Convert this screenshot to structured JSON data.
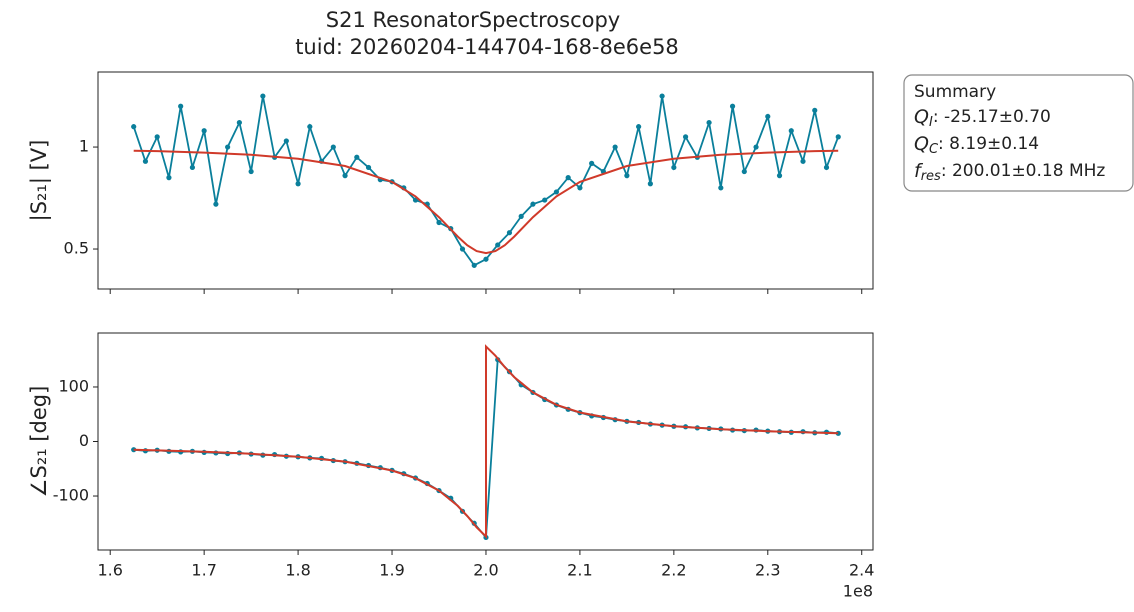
{
  "figure": {
    "title": "S21 ResonatorSpectroscopy",
    "subtitle": "tuid: 20260204-144704-168-8e6e58",
    "summary": {
      "title": "Summary",
      "lines": [
        {
          "symbol": "Q",
          "sub": "I",
          "text": ": -25.17±0.70"
        },
        {
          "symbol": "Q",
          "sub": "C",
          "text": ": 8.19±0.14"
        },
        {
          "symbol": "f",
          "sub": "res",
          "text": ": 200.01±0.18 MHz"
        }
      ]
    }
  },
  "chart_data": [
    {
      "type": "line",
      "ylabel": "|S₂₁| [V]",
      "xlim": [
        1.587,
        2.412
      ],
      "xticks": [
        1.6,
        1.7,
        1.8,
        1.9,
        {
          "value": 2,
          "label": "2.0"
        },
        2.1,
        2.2,
        2.3,
        2.4
      ],
      "show_xtick_labels": false,
      "ylim": [
        0.304,
        1.368
      ],
      "yticks": [
        0.5,
        1
      ],
      "series": [
        {
          "name": "data",
          "color": "#0a7f9b",
          "markers": true,
          "x": [
            1.625,
            1.6375,
            1.65,
            1.6625,
            1.675,
            1.6875,
            1.7,
            1.7125,
            1.725,
            1.7375,
            1.75,
            1.7625,
            1.775,
            1.7875,
            1.8,
            1.8125,
            1.825,
            1.8375,
            1.85,
            1.8625,
            1.875,
            1.8875,
            1.9,
            1.9125,
            1.925,
            1.9375,
            1.95,
            1.9625,
            1.975,
            1.9875,
            2.0,
            2.0125,
            2.025,
            2.0375,
            2.05,
            2.0625,
            2.075,
            2.0875,
            2.1,
            2.1125,
            2.125,
            2.1375,
            2.15,
            2.1625,
            2.175,
            2.1875,
            2.2,
            2.2125,
            2.225,
            2.2375,
            2.25,
            2.2625,
            2.275,
            2.2875,
            2.3,
            2.3125,
            2.325,
            2.3375,
            2.35,
            2.3625,
            2.375
          ],
          "values": [
            1.1,
            0.93,
            1.05,
            0.85,
            1.2,
            0.9,
            1.08,
            0.72,
            1.0,
            1.12,
            0.88,
            1.25,
            0.95,
            1.03,
            0.82,
            1.1,
            0.93,
            1.0,
            0.86,
            0.95,
            0.9,
            0.84,
            0.83,
            0.8,
            0.74,
            0.72,
            0.63,
            0.6,
            0.5,
            0.42,
            0.45,
            0.52,
            0.58,
            0.66,
            0.72,
            0.74,
            0.78,
            0.85,
            0.8,
            0.92,
            0.88,
            1.0,
            0.86,
            1.1,
            0.82,
            1.25,
            0.9,
            1.05,
            0.95,
            1.12,
            0.8,
            1.2,
            0.88,
            1.0,
            1.15,
            0.86,
            1.08,
            0.93,
            1.18,
            0.9,
            1.05
          ]
        },
        {
          "name": "fit",
          "color": "#d03a2a",
          "markers": false,
          "x": [
            1.625,
            1.65,
            1.7,
            1.75,
            1.8,
            1.85,
            1.9,
            1.925,
            1.95,
            1.97,
            1.98,
            1.99,
            2.0,
            2.01,
            2.02,
            2.03,
            2.05,
            2.075,
            2.1,
            2.15,
            2.2,
            2.25,
            2.3,
            2.35,
            2.375
          ],
          "values": [
            0.982,
            0.98,
            0.973,
            0.962,
            0.943,
            0.907,
            0.829,
            0.758,
            0.656,
            0.561,
            0.519,
            0.49,
            0.48,
            0.49,
            0.519,
            0.561,
            0.656,
            0.758,
            0.829,
            0.907,
            0.943,
            0.962,
            0.973,
            0.98,
            0.982
          ]
        }
      ]
    },
    {
      "type": "line",
      "ylabel": "∠S₂₁ [deg]",
      "xlim": [
        1.587,
        2.412
      ],
      "xticks": [
        1.6,
        1.7,
        1.8,
        1.9,
        {
          "value": 2,
          "label": "2.0"
        },
        2.1,
        2.2,
        2.3,
        2.4
      ],
      "show_xtick_labels": true,
      "x_offset_label": "1e8",
      "ylim": [
        -199,
        199
      ],
      "yticks": [
        -100,
        0,
        100
      ],
      "series": [
        {
          "name": "data",
          "color": "#0a7f9b",
          "markers": true,
          "x": [
            1.625,
            1.6375,
            1.65,
            1.6625,
            1.675,
            1.6875,
            1.7,
            1.7125,
            1.725,
            1.7375,
            1.75,
            1.7625,
            1.775,
            1.7875,
            1.8,
            1.8125,
            1.825,
            1.8375,
            1.85,
            1.8625,
            1.875,
            1.8875,
            1.9,
            1.9125,
            1.925,
            1.9375,
            1.95,
            1.9625,
            1.975,
            1.9875,
            2.0,
            2.0125,
            2.025,
            2.0375,
            2.05,
            2.0625,
            2.075,
            2.0875,
            2.1,
            2.1125,
            2.125,
            2.1375,
            2.15,
            2.1625,
            2.175,
            2.1875,
            2.2,
            2.2125,
            2.225,
            2.2375,
            2.25,
            2.2625,
            2.275,
            2.2875,
            2.3,
            2.3125,
            2.325,
            2.3375,
            2.35,
            2.3625,
            2.375
          ],
          "values": [
            -15,
            -17,
            -16,
            -18,
            -19,
            -18,
            -20,
            -21,
            -22,
            -21,
            -23,
            -25,
            -24,
            -27,
            -28,
            -30,
            -31,
            -35,
            -37,
            -40,
            -44,
            -48,
            -53,
            -59,
            -67,
            -77,
            -90,
            -104,
            -128,
            -150,
            -176,
            150,
            128,
            104,
            90,
            77,
            67,
            59,
            53,
            47,
            44,
            40,
            37,
            35,
            32,
            30,
            28,
            27,
            25,
            24,
            23,
            21,
            20,
            21,
            19,
            18,
            17,
            18,
            16,
            17,
            15
          ]
        },
        {
          "name": "fit",
          "color": "#d03a2a",
          "markers": false,
          "x": [
            1.625,
            1.65,
            1.7,
            1.75,
            1.8,
            1.85,
            1.9,
            1.925,
            1.95,
            1.97,
            1.98,
            1.99,
            2.0,
            2.0,
            2.01,
            2.02,
            2.03,
            2.05,
            2.075,
            2.1,
            2.15,
            2.2,
            2.25,
            2.3,
            2.35,
            2.375
          ],
          "values": [
            -15.2,
            -16.3,
            -18.9,
            -22.6,
            -28.1,
            -36.9,
            -53.1,
            -67.4,
            -90,
            -118.1,
            -136.4,
            -157.4,
            -174.3,
            174.3,
            157.4,
            136.4,
            118.1,
            90,
            67.4,
            53.1,
            36.9,
            28.1,
            22.6,
            18.9,
            16.3,
            15.2
          ]
        }
      ]
    }
  ]
}
